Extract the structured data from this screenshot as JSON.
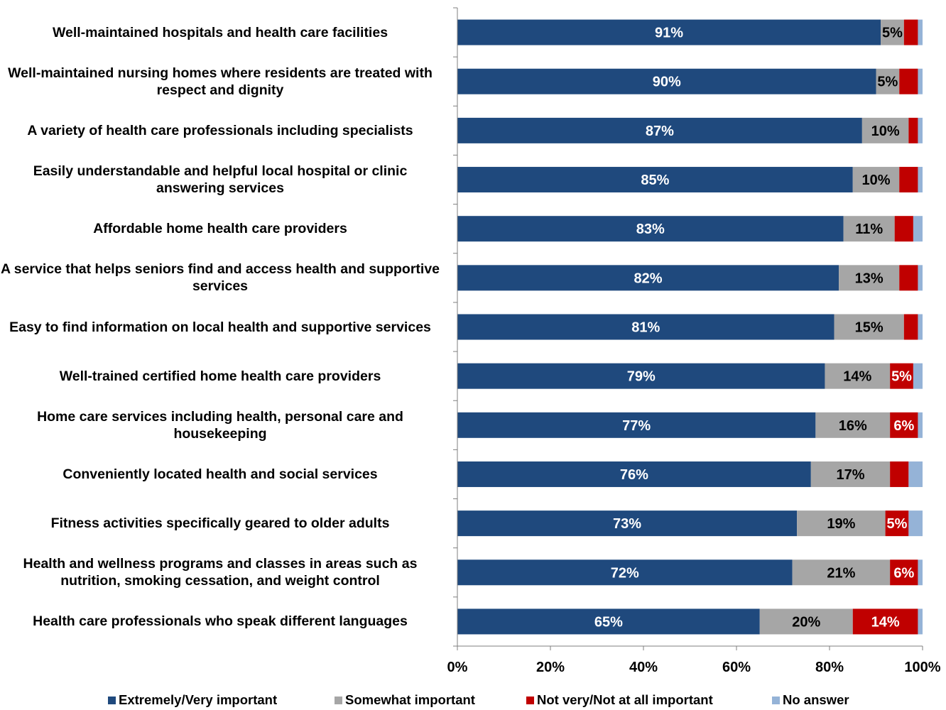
{
  "chart_data": {
    "type": "bar",
    "orientation": "horizontal",
    "stacked": true,
    "categories": [
      "Well-maintained hospitals and health care facilities",
      "Well-maintained nursing homes where residents are treated with respect and dignity",
      "A variety of health care professionals including specialists",
      "Easily understandable and helpful local hospital or clinic answering services",
      "Affordable home health care providers",
      "A service that helps seniors find and access health and supportive services",
      "Easy to find information on local health and supportive services",
      "Well-trained certified home health care providers",
      "Home care services including health, personal care and housekeeping",
      "Conveniently located health and social services",
      "Fitness activities specifically geared to older adults",
      "Health and wellness programs and classes in areas such as nutrition, smoking cessation, and weight control",
      "Health care professionals who speak different languages"
    ],
    "series": [
      {
        "name": "Extremely/Very important",
        "color": "#1F497D",
        "label_color": "#FFFFFF",
        "values": [
          91,
          90,
          87,
          85,
          83,
          82,
          81,
          79,
          77,
          76,
          73,
          72,
          65
        ],
        "labels": [
          "91%",
          "90%",
          "87%",
          "85%",
          "83%",
          "82%",
          "81%",
          "79%",
          "77%",
          "76%",
          "73%",
          "72%",
          "65%"
        ]
      },
      {
        "name": "Somewhat important",
        "color": "#A6A6A6",
        "label_color": "#000000",
        "values": [
          5,
          5,
          10,
          10,
          11,
          13,
          15,
          14,
          16,
          17,
          19,
          21,
          20
        ],
        "labels": [
          "5%",
          "5%",
          "10%",
          "10%",
          "11%",
          "13%",
          "15%",
          "14%",
          "16%",
          "17%",
          "19%",
          "21%",
          "20%"
        ]
      },
      {
        "name": "Not very/Not at all important",
        "color": "#C00000",
        "label_color": "#FFFFFF",
        "values": [
          3,
          4,
          2,
          4,
          4,
          4,
          3,
          5,
          6,
          4,
          5,
          6,
          14
        ],
        "labels": [
          "",
          "",
          "",
          "",
          "",
          "",
          "",
          "5%",
          "6%",
          "",
          "5%",
          "6%",
          "14%"
        ]
      },
      {
        "name": "No answer",
        "color": "#95B3D7",
        "label_color": "#000000",
        "values": [
          1,
          1,
          1,
          1,
          2,
          1,
          1,
          2,
          1,
          3,
          3,
          1,
          1
        ],
        "labels": [
          "",
          "",
          "",
          "",
          "",
          "",
          "",
          "",
          "",
          "",
          "",
          "",
          ""
        ]
      }
    ],
    "xaxis": {
      "ticks": [
        0,
        20,
        40,
        60,
        80,
        100
      ],
      "tick_labels": [
        "0%",
        "20%",
        "40%",
        "60%",
        "80%",
        "100%"
      ],
      "range": [
        0,
        100
      ]
    },
    "grid": false,
    "legend_position": "bottom",
    "title": "",
    "xlabel": "",
    "ylabel": ""
  }
}
